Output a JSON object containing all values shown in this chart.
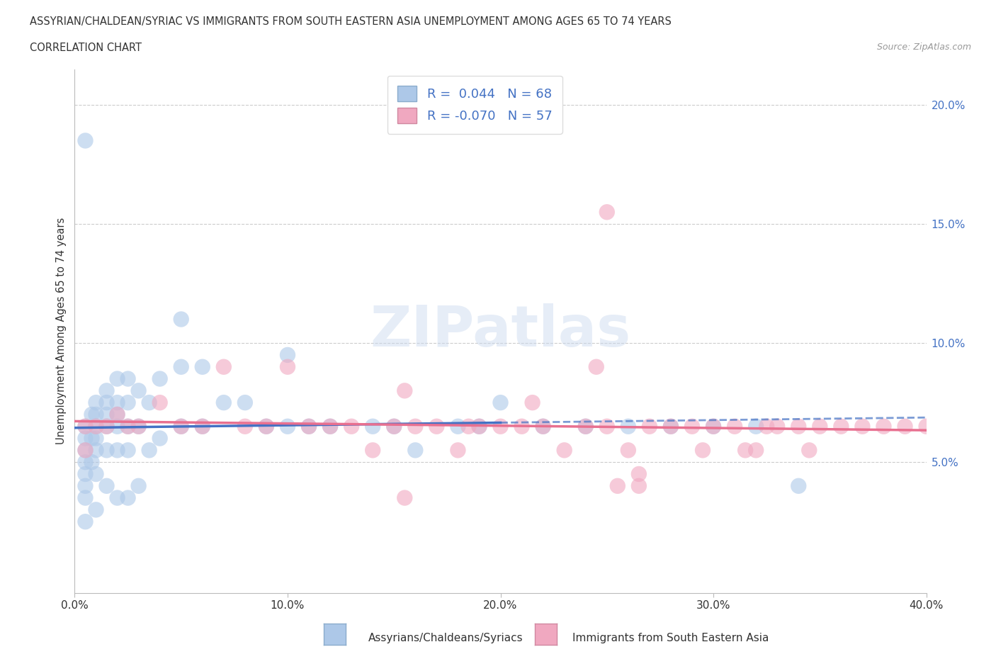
{
  "title_line1": "ASSYRIAN/CHALDEAN/SYRIAC VS IMMIGRANTS FROM SOUTH EASTERN ASIA UNEMPLOYMENT AMONG AGES 65 TO 74 YEARS",
  "title_line2": "CORRELATION CHART",
  "source_text": "Source: ZipAtlas.com",
  "ylabel": "Unemployment Among Ages 65 to 74 years",
  "xlim": [
    0.0,
    0.4
  ],
  "ylim": [
    -0.005,
    0.215
  ],
  "xtick_labels": [
    "0.0%",
    "10.0%",
    "20.0%",
    "30.0%",
    "40.0%"
  ],
  "xtick_values": [
    0.0,
    0.1,
    0.2,
    0.3,
    0.4
  ],
  "ytick_labels": [
    "5.0%",
    "10.0%",
    "15.0%",
    "20.0%"
  ],
  "ytick_values": [
    0.05,
    0.1,
    0.15,
    0.2
  ],
  "legend_label1": "Assyrians/Chaldeans/Syriacs",
  "legend_label2": "Immigrants from South Eastern Asia",
  "r1": 0.044,
  "n1": 68,
  "r2": -0.07,
  "n2": 57,
  "color1": "#adc8e8",
  "color2": "#f0a8c0",
  "line_color1": "#4472c4",
  "line_color2": "#e87090",
  "blue_scatter_x": [
    0.005,
    0.005,
    0.005,
    0.005,
    0.005,
    0.005,
    0.005,
    0.005,
    0.008,
    0.008,
    0.008,
    0.01,
    0.01,
    0.01,
    0.01,
    0.01,
    0.01,
    0.01,
    0.015,
    0.015,
    0.015,
    0.015,
    0.015,
    0.015,
    0.02,
    0.02,
    0.02,
    0.02,
    0.02,
    0.02,
    0.025,
    0.025,
    0.025,
    0.025,
    0.025,
    0.03,
    0.03,
    0.03,
    0.035,
    0.035,
    0.04,
    0.04,
    0.05,
    0.05,
    0.05,
    0.06,
    0.06,
    0.07,
    0.08,
    0.09,
    0.1,
    0.1,
    0.11,
    0.12,
    0.14,
    0.15,
    0.16,
    0.18,
    0.19,
    0.2,
    0.22,
    0.24,
    0.26,
    0.28,
    0.3,
    0.32,
    0.34,
    0.005
  ],
  "blue_scatter_y": [
    0.065,
    0.06,
    0.055,
    0.05,
    0.045,
    0.04,
    0.035,
    0.025,
    0.07,
    0.06,
    0.05,
    0.075,
    0.07,
    0.065,
    0.06,
    0.055,
    0.045,
    0.03,
    0.08,
    0.075,
    0.07,
    0.065,
    0.055,
    0.04,
    0.085,
    0.075,
    0.07,
    0.065,
    0.055,
    0.035,
    0.085,
    0.075,
    0.065,
    0.055,
    0.035,
    0.08,
    0.065,
    0.04,
    0.075,
    0.055,
    0.085,
    0.06,
    0.11,
    0.09,
    0.065,
    0.09,
    0.065,
    0.075,
    0.075,
    0.065,
    0.095,
    0.065,
    0.065,
    0.065,
    0.065,
    0.065,
    0.055,
    0.065,
    0.065,
    0.075,
    0.065,
    0.065,
    0.065,
    0.065,
    0.065,
    0.065,
    0.04,
    0.185
  ],
  "pink_scatter_x": [
    0.005,
    0.005,
    0.01,
    0.015,
    0.02,
    0.025,
    0.03,
    0.04,
    0.05,
    0.06,
    0.07,
    0.08,
    0.09,
    0.1,
    0.11,
    0.12,
    0.13,
    0.14,
    0.15,
    0.16,
    0.17,
    0.18,
    0.19,
    0.2,
    0.21,
    0.22,
    0.23,
    0.24,
    0.25,
    0.26,
    0.27,
    0.28,
    0.29,
    0.3,
    0.31,
    0.32,
    0.33,
    0.34,
    0.35,
    0.36,
    0.37,
    0.38,
    0.39,
    0.4,
    0.155,
    0.185,
    0.215,
    0.245,
    0.315,
    0.345,
    0.255,
    0.155,
    0.295,
    0.325,
    0.265,
    0.25,
    0.265
  ],
  "pink_scatter_y": [
    0.065,
    0.055,
    0.065,
    0.065,
    0.07,
    0.065,
    0.065,
    0.075,
    0.065,
    0.065,
    0.09,
    0.065,
    0.065,
    0.09,
    0.065,
    0.065,
    0.065,
    0.055,
    0.065,
    0.065,
    0.065,
    0.055,
    0.065,
    0.065,
    0.065,
    0.065,
    0.055,
    0.065,
    0.065,
    0.055,
    0.065,
    0.065,
    0.065,
    0.065,
    0.065,
    0.055,
    0.065,
    0.065,
    0.065,
    0.065,
    0.065,
    0.065,
    0.065,
    0.065,
    0.08,
    0.065,
    0.075,
    0.09,
    0.055,
    0.055,
    0.04,
    0.035,
    0.055,
    0.065,
    0.045,
    0.155,
    0.04
  ]
}
